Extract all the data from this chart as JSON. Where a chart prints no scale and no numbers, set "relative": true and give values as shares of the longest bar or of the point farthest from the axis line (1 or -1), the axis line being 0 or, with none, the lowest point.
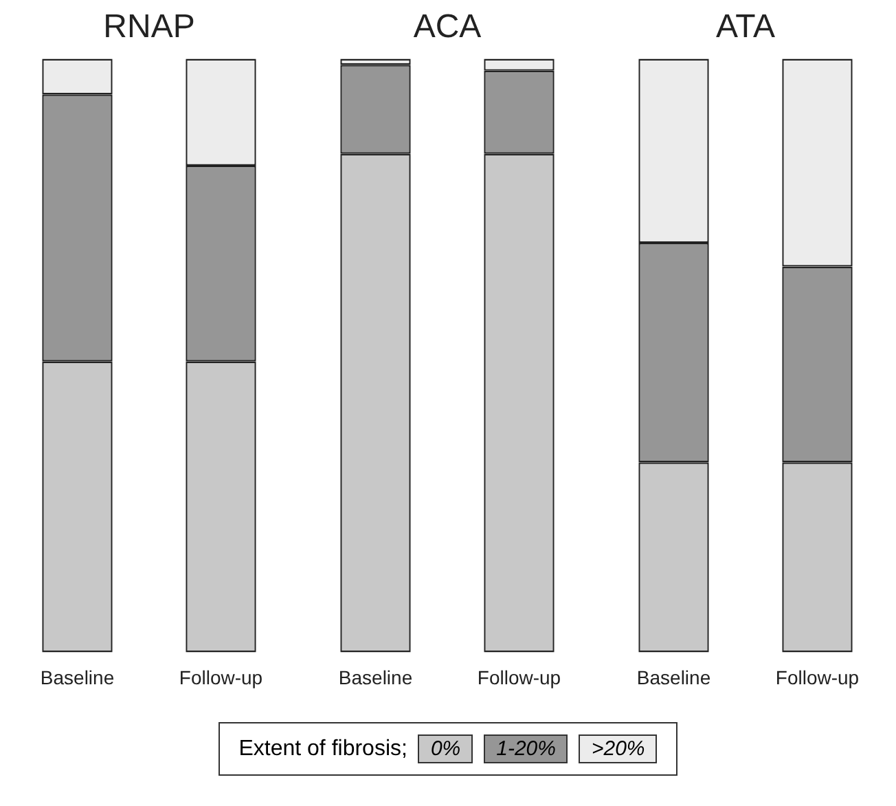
{
  "chart_data": [
    {
      "type": "bar",
      "title": "RNAP",
      "categories": [
        "Baseline",
        "Follow-up"
      ],
      "stacked": true,
      "relative": true,
      "legend": "bottom",
      "legend_title": "Extent of fibrosis;",
      "series": [
        {
          "name": "0%",
          "color": "#c8c8c8",
          "values": [
            0.49,
            0.49
          ]
        },
        {
          "name": "1-20%",
          "color": "#969696",
          "values": [
            0.45,
            0.33
          ]
        },
        {
          "name": ">20%",
          "color": "#ececec",
          "values": [
            0.06,
            0.18
          ]
        }
      ]
    },
    {
      "type": "bar",
      "title": "ACA",
      "categories": [
        "Baseline",
        "Follow-up"
      ],
      "stacked": true,
      "relative": true,
      "series": [
        {
          "color": "#c8c8c8",
          "values": [
            0.84,
            0.84
          ]
        },
        {
          "color": "#969696",
          "values": [
            0.15,
            0.14
          ]
        },
        {
          "color": "#ececec",
          "values": [
            0.01,
            0.02
          ]
        }
      ]
    },
    {
      "type": "bar",
      "title": "ATA",
      "categories": [
        "Baseline",
        "Follow-up"
      ],
      "stacked": true,
      "relative": true,
      "series": [
        {
          "color": "#c8c8c8",
          "values": [
            0.32,
            0.32
          ]
        },
        {
          "color": "#969696",
          "values": [
            0.37,
            0.33
          ]
        },
        {
          "color": "#ececec",
          "values": [
            0.31,
            0.35
          ]
        }
      ]
    }
  ]
}
